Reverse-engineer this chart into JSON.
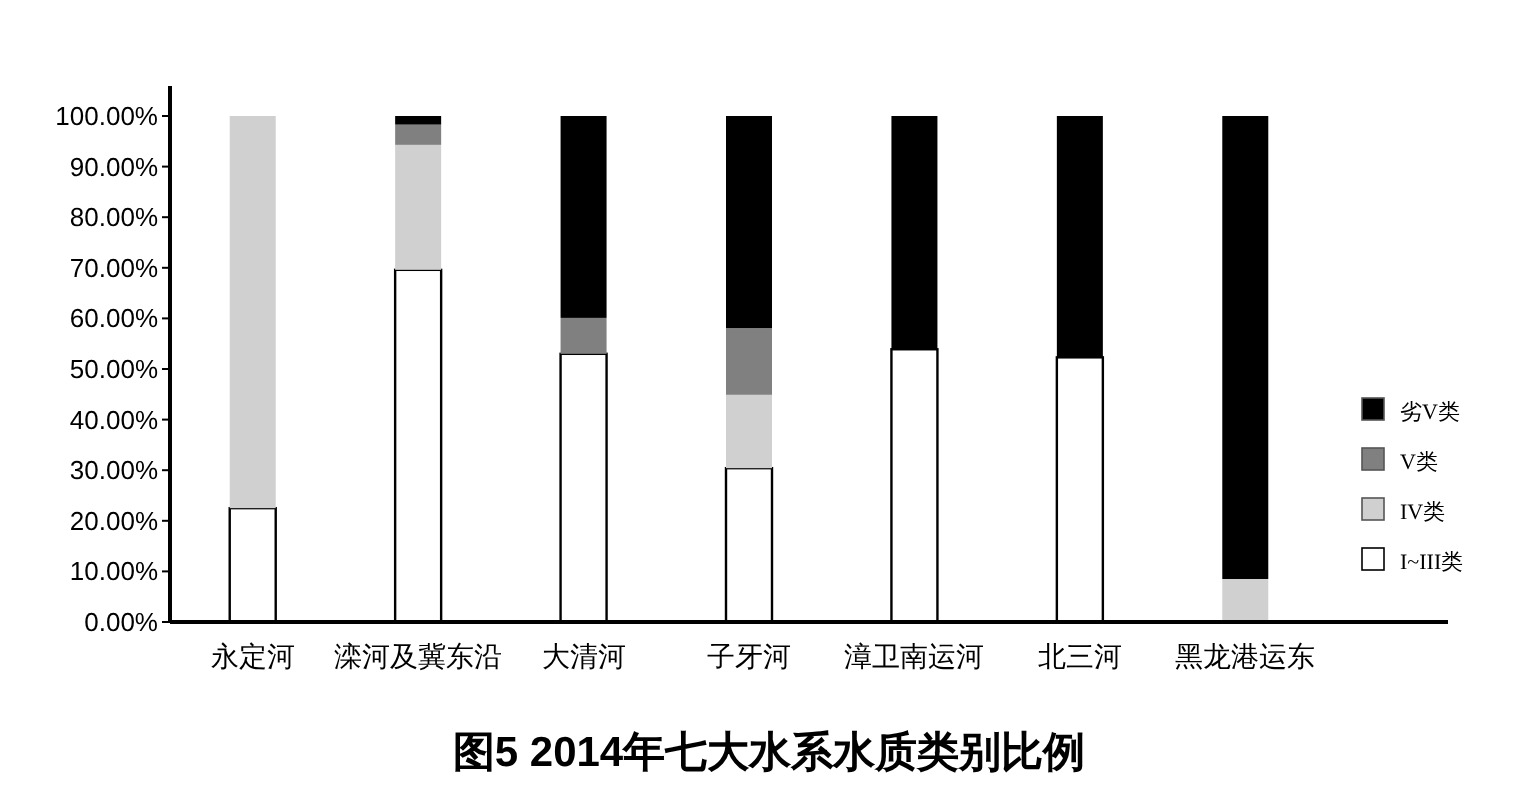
{
  "chart_data": {
    "type": "bar",
    "stacked": true,
    "title": "图5   2014年七大水系水质类别比例",
    "categories": [
      "永定河",
      "滦河及冀东沿",
      "大清河",
      "子牙河",
      "漳卫南运河",
      "北三河",
      "黑龙港运东"
    ],
    "series": [
      {
        "name": "I~III类",
        "color": "#ffffff",
        "values": [
          22.5,
          69.6,
          53.0,
          30.4,
          53.9,
          52.3,
          0
        ]
      },
      {
        "name": "IV类",
        "color": "#d0d0d0",
        "values": [
          77.5,
          24.7,
          0,
          14.5,
          0,
          0,
          8.5
        ]
      },
      {
        "name": "V类",
        "color": "#808080",
        "values": [
          0,
          4.0,
          7.1,
          13.2,
          0,
          0,
          0
        ]
      },
      {
        "name": "劣V类",
        "color": "#000000",
        "values": [
          0,
          1.7,
          39.9,
          41.9,
          46.1,
          47.7,
          91.5
        ]
      }
    ],
    "ylim": [
      0,
      100
    ],
    "yticks": [
      {
        "value": 0,
        "label": "0.00%"
      },
      {
        "value": 10,
        "label": "10.00%"
      },
      {
        "value": 20,
        "label": "20.00%"
      },
      {
        "value": 30,
        "label": "30.00%"
      },
      {
        "value": 40,
        "label": "40.00%"
      },
      {
        "value": 50,
        "label": "50.00%"
      },
      {
        "value": 60,
        "label": "60.00%"
      },
      {
        "value": 70,
        "label": "70.00%"
      },
      {
        "value": 80,
        "label": "80.00%"
      },
      {
        "value": 90,
        "label": "90.00%"
      },
      {
        "value": 100,
        "label": "100.00%"
      }
    ],
    "legend": "right",
    "grid": false
  }
}
